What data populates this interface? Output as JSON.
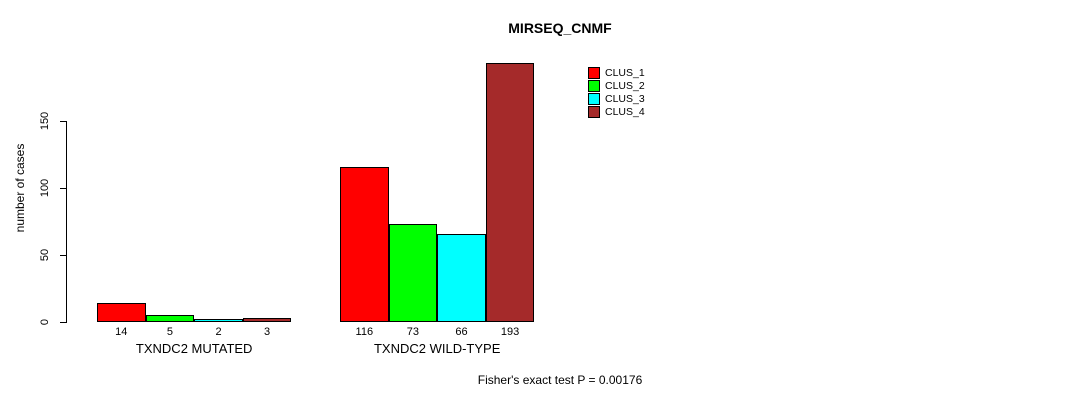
{
  "chart_data": {
    "type": "bar",
    "title": "MIRSEQ_CNMF",
    "ylabel": "number of cases",
    "xlabel": "",
    "ylim": [
      0,
      150
    ],
    "yticks": [
      0,
      50,
      100,
      150
    ],
    "grid": false,
    "legend_position": "top-right",
    "legend": [
      {
        "label": "CLUS_1",
        "color": "#FF0000"
      },
      {
        "label": "CLUS_2",
        "color": "#00FF00"
      },
      {
        "label": "CLUS_3",
        "color": "#00FFFF"
      },
      {
        "label": "CLUS_4",
        "color": "#A52A2A"
      }
    ],
    "categories": [
      "TXNDC2 MUTATED",
      "TXNDC2 WILD-TYPE"
    ],
    "series": [
      {
        "name": "CLUS_1",
        "values": [
          14,
          116
        ]
      },
      {
        "name": "CLUS_2",
        "values": [
          5,
          73
        ]
      },
      {
        "name": "CLUS_3",
        "values": [
          2,
          66
        ]
      },
      {
        "name": "CLUS_4",
        "values": [
          3,
          193
        ]
      }
    ],
    "groups": [
      {
        "label": "TXNDC2 MUTATED",
        "values": [
          14,
          5,
          2,
          3
        ]
      },
      {
        "label": "TXNDC2 WILD-TYPE",
        "values": [
          116,
          73,
          66,
          193
        ]
      }
    ],
    "bar_value_labels": true,
    "footnote": "Fisher's exact test P = 0.00176"
  }
}
